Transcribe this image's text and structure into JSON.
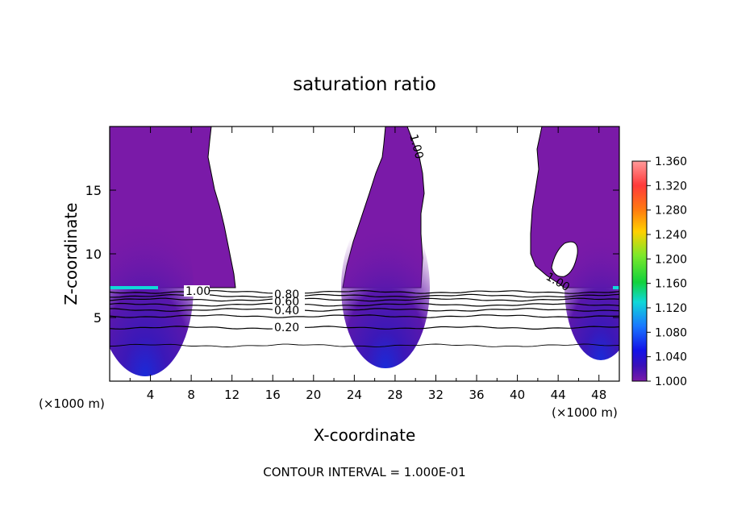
{
  "chart_data": {
    "type": "contour",
    "title": "saturation ratio",
    "xlabel": "X-coordinate",
    "ylabel": "Z-coordinate",
    "x_unit_left": "(×1000 m)",
    "x_unit_right": "(×1000 m)",
    "footer": "CONTOUR INTERVAL = 1.000E-01",
    "xlim": [
      0,
      50
    ],
    "ylim": [
      0,
      20
    ],
    "x_ticks": [
      4,
      8,
      12,
      16,
      20,
      24,
      28,
      32,
      36,
      40,
      44,
      48
    ],
    "y_ticks": [
      5,
      10,
      15
    ],
    "colorbar": {
      "ticks": [
        "1.360",
        "1.320",
        "1.280",
        "1.240",
        "1.200",
        "1.160",
        "1.120",
        "1.080",
        "1.040",
        "1.000"
      ],
      "colors": [
        "#ff9a9a",
        "#ff3a3a",
        "#ff7a10",
        "#ffd000",
        "#7be82a",
        "#12d23c",
        "#10d8d8",
        "#1a78ff",
        "#1212e8",
        "#3a10b8",
        "#7a1aa8"
      ]
    },
    "contour_labels": [
      "1.00",
      "0.80",
      "0.60",
      "0.40",
      "0.20",
      "1.00",
      "1.00"
    ],
    "contour_levels_below": [
      {
        "z": 7.0
      },
      {
        "z": 6.7
      },
      {
        "z": 6.4
      },
      {
        "z": 6.0
      },
      {
        "z": 5.6
      },
      {
        "z": 5.1
      },
      {
        "z": 4.2
      },
      {
        "z": 2.8
      }
    ],
    "supersaturated_regions": [
      {
        "x": [
          0,
          1,
          2,
          3,
          4,
          5,
          6,
          7,
          8,
          9,
          10,
          10.5,
          10,
          10.5,
          11,
          11.5,
          12,
          12.2,
          12.5
        ],
        "ztop": 20,
        "zbase": 7.2
      },
      {
        "x": [
          22.5,
          23,
          24,
          25,
          26,
          27,
          27.5,
          28,
          29,
          30,
          30.5
        ],
        "ztop": 20,
        "zbase": 7.2
      },
      {
        "x": [
          41,
          42,
          43,
          44,
          45,
          46,
          47,
          48,
          49,
          50
        ],
        "ztop": 20,
        "zbase": 7.2
      }
    ]
  }
}
